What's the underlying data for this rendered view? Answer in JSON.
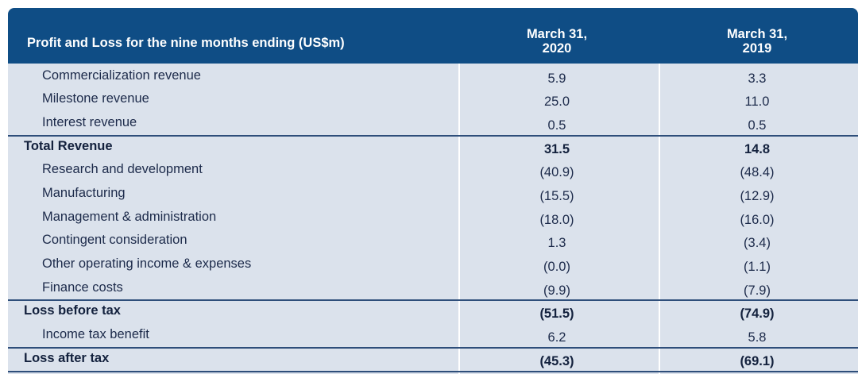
{
  "table": {
    "title": "Profit and Loss for the nine months ending (US$m)",
    "columns": [
      {
        "line1": "March 31,",
        "line2": "2020"
      },
      {
        "line1": "March 31,",
        "line2": "2019"
      }
    ],
    "rows": [
      {
        "label": "Commercialization revenue",
        "v1": "5.9",
        "v2": "3.3",
        "bold": false
      },
      {
        "label": "Milestone revenue",
        "v1": "25.0",
        "v2": "11.0",
        "bold": false
      },
      {
        "label": "Interest revenue",
        "v1": "0.5",
        "v2": "0.5",
        "bold": false
      },
      {
        "label": "Total Revenue",
        "v1": "31.5",
        "v2": "14.8",
        "bold": true
      },
      {
        "label": "Research and development",
        "v1": "(40.9)",
        "v2": "(48.4)",
        "bold": false
      },
      {
        "label": "Manufacturing",
        "v1": "(15.5)",
        "v2": "(12.9)",
        "bold": false
      },
      {
        "label": "Management & administration",
        "v1": "(18.0)",
        "v2": "(16.0)",
        "bold": false
      },
      {
        "label": "Contingent consideration",
        "v1": "1.3",
        "v2": "(3.4)",
        "bold": false
      },
      {
        "label": "Other operating income & expenses",
        "v1": "(0.0)",
        "v2": "(1.1)",
        "bold": false
      },
      {
        "label": "Finance costs",
        "v1": "(9.9)",
        "v2": "(7.9)",
        "bold": false
      },
      {
        "label": "Loss before tax",
        "v1": "(51.5)",
        "v2": "(74.9)",
        "bold": true
      },
      {
        "label": "Income tax benefit",
        "v1": "6.2",
        "v2": "5.8",
        "bold": false
      },
      {
        "label": "Loss after tax",
        "v1": "(45.3)",
        "v2": "(69.1)",
        "bold": true
      }
    ]
  },
  "colors": {
    "header_bg": "#0f4d85",
    "body_bg": "#dbe2ec",
    "rule": "#2e4e7a"
  }
}
